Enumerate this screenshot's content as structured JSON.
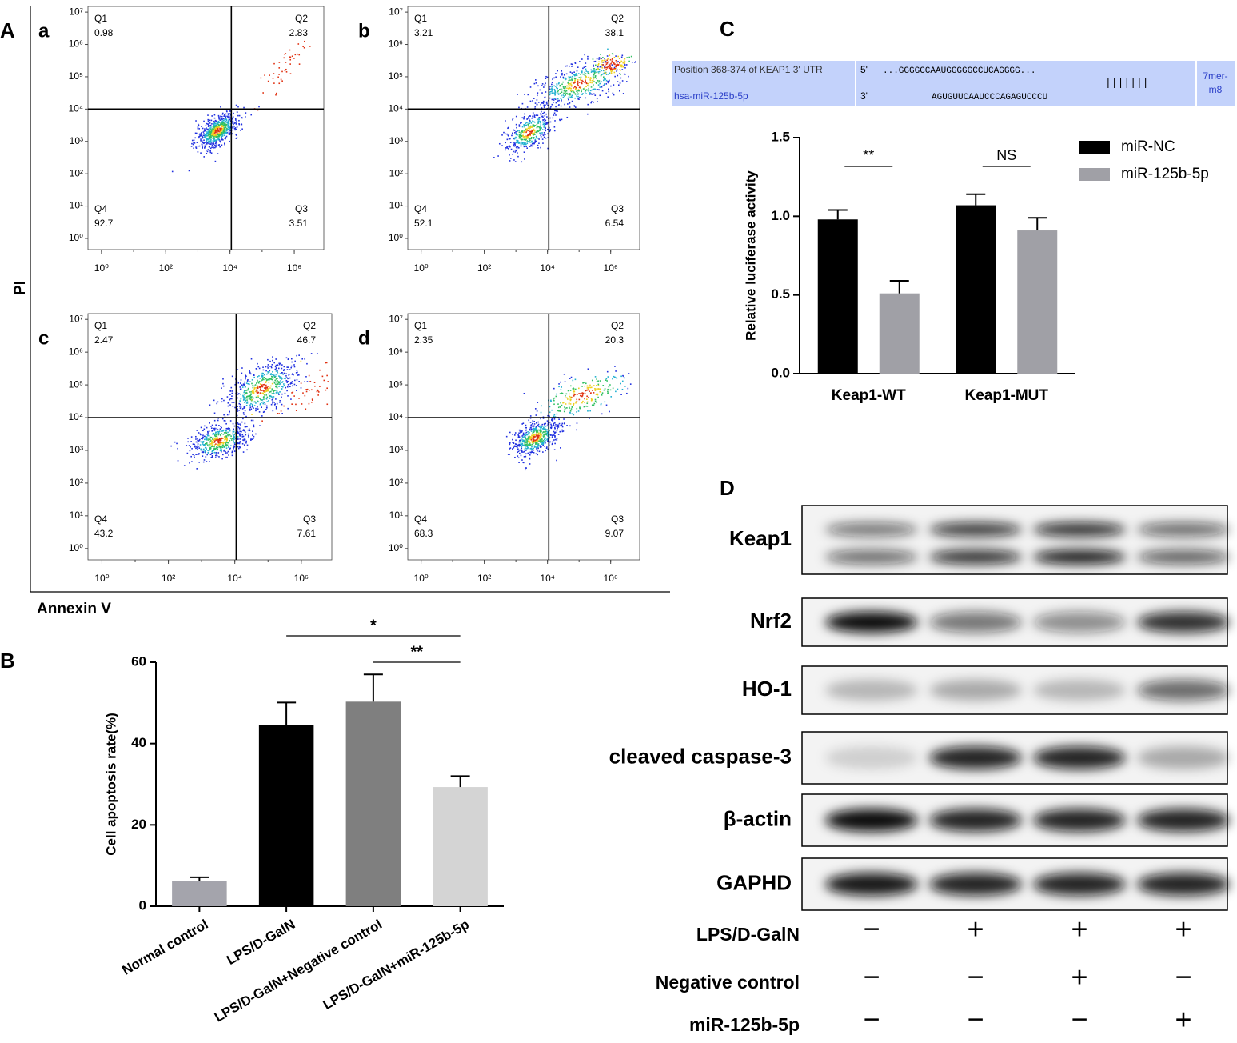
{
  "panel_letters": [
    "A",
    "B",
    "C",
    "D"
  ],
  "flow": {
    "y_label": "PI",
    "x_label": "Annexin V",
    "scale": "log",
    "xlim": [
      0.38,
      8300000
    ],
    "ylim": [
      0.45,
      15000000
    ],
    "xticks": [
      {
        "value": 1,
        "label": "10⁰"
      },
      {
        "value": 100,
        "label": "10²"
      },
      {
        "value": 10000,
        "label": "10⁴"
      },
      {
        "value": 1000000,
        "label": "10⁶"
      }
    ],
    "yticks": [
      {
        "value": 1,
        "label": "10⁰"
      },
      {
        "value": 10,
        "label": "10¹"
      },
      {
        "value": 100,
        "label": "10²"
      },
      {
        "value": 1000,
        "label": "10³"
      },
      {
        "value": 10000,
        "label": "10⁴"
      },
      {
        "value": 100000,
        "label": "10⁵"
      },
      {
        "value": 1000000,
        "label": "10⁶"
      },
      {
        "value": 10000000,
        "label": "10⁷"
      }
    ],
    "gate": {
      "x": 11000,
      "y": 10000
    },
    "panels": [
      {
        "letter": "a",
        "quadrants": [
          {
            "name": "Q1",
            "value": 0.98
          },
          {
            "name": "Q2",
            "value": 2.83
          },
          {
            "name": "Q3",
            "value": 3.51
          },
          {
            "name": "Q4",
            "value": 92.7
          }
        ]
      },
      {
        "letter": "b",
        "quadrants": [
          {
            "name": "Q1",
            "value": 3.21
          },
          {
            "name": "Q2",
            "value": 38.1
          },
          {
            "name": "Q3",
            "value": 6.54
          },
          {
            "name": "Q4",
            "value": 52.1
          }
        ]
      },
      {
        "letter": "c",
        "quadrants": [
          {
            "name": "Q1",
            "value": 2.47
          },
          {
            "name": "Q2",
            "value": 46.7
          },
          {
            "name": "Q3",
            "value": 7.61
          },
          {
            "name": "Q4",
            "value": 43.2
          }
        ]
      },
      {
        "letter": "d",
        "quadrants": [
          {
            "name": "Q1",
            "value": 2.35
          },
          {
            "name": "Q2",
            "value": 20.3
          },
          {
            "name": "Q3",
            "value": 9.07
          },
          {
            "name": "Q4",
            "value": 68.3
          }
        ]
      }
    ]
  },
  "chart_data": [
    {
      "type": "bar",
      "ylabel": "Cell apoptosis rate(%)",
      "categories": [
        "Normal control",
        "LPS/D-GalN",
        "LPS/D-GalN+Negative control",
        "LPS/D-GalN+miR-125b-5p"
      ],
      "values": [
        6.1,
        44.5,
        50.3,
        29.3
      ],
      "errors": [
        1.0,
        5.6,
        6.7,
        2.7
      ],
      "colors": [
        "#a4a4ac",
        "#000000",
        "#7f7f7f",
        "#d4d4d4"
      ],
      "ylim": [
        0,
        60
      ],
      "yticks": [
        0,
        20,
        40,
        60
      ],
      "annotations": [
        {
          "label": "*",
          "from": 1,
          "to": 3
        },
        {
          "label": "**",
          "from": 2,
          "to": 3
        }
      ]
    },
    {
      "type": "grouped_bar",
      "ylabel": "Relative luciferase activity",
      "categories": [
        "Keap1-WT",
        "Keap1-MUT"
      ],
      "series": [
        {
          "name": "miR-NC",
          "color": "#000000",
          "values": [
            0.98,
            1.07
          ],
          "errors": [
            0.06,
            0.07
          ]
        },
        {
          "name": "miR-125b-5p",
          "color": "#a0a0a6",
          "values": [
            0.51,
            0.91
          ],
          "errors": [
            0.08,
            0.08
          ]
        }
      ],
      "ylim": [
        0,
        1.5
      ],
      "yticks": [
        {
          "value": 0,
          "label": "0.0"
        },
        {
          "value": 0.5,
          "label": "0.5"
        },
        {
          "value": 1,
          "label": "1.0"
        },
        {
          "value": 1.5,
          "label": "1.5"
        }
      ],
      "legend": "upper right",
      "annotations": [
        {
          "label": "**",
          "category": 0
        },
        {
          "label": "NS",
          "category": 1
        }
      ]
    }
  ],
  "sequence": {
    "site": "Position 368-374 of KEAP1 3' UTR",
    "mirna": "hsa-miR-125b-5p",
    "utr_end": "5'",
    "utr_seq": "...GGGGCCAAUGGGGGCCUCAGGGG...",
    "mir_end": "3'",
    "mir_seq": "AGUGUUCAAUCCCAGAGUCCCU",
    "pairing": "|||||||",
    "site_type": [
      "7mer-",
      "m8"
    ]
  },
  "blot": {
    "proteins": [
      "Keap1",
      "Nrf2",
      "HO-1",
      "cleaved caspase-3",
      "β-actin",
      "GAPHD"
    ],
    "conditions": [
      {
        "name": "LPS/D-GalN",
        "signs": [
          "−",
          "+",
          "+",
          "+"
        ]
      },
      {
        "name": "Negative control",
        "signs": [
          "−",
          "−",
          "+",
          "−"
        ]
      },
      {
        "name": "miR-125b-5p",
        "signs": [
          "−",
          "−",
          "−",
          "+"
        ]
      }
    ]
  }
}
